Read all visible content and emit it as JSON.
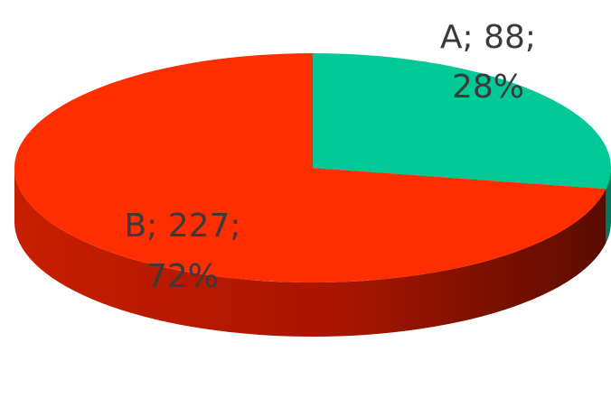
{
  "chart_data": {
    "type": "pie",
    "style": "3d",
    "title": "",
    "slices": [
      {
        "label": "A",
        "value": 88,
        "percent": "28%",
        "color": "#00c896",
        "line1": "A; 88;",
        "line2": "28%"
      },
      {
        "label": "B",
        "value": 227,
        "percent": "72%",
        "color": "#ff2e00",
        "line1": "B; 227;",
        "line2": "72%"
      }
    ]
  }
}
